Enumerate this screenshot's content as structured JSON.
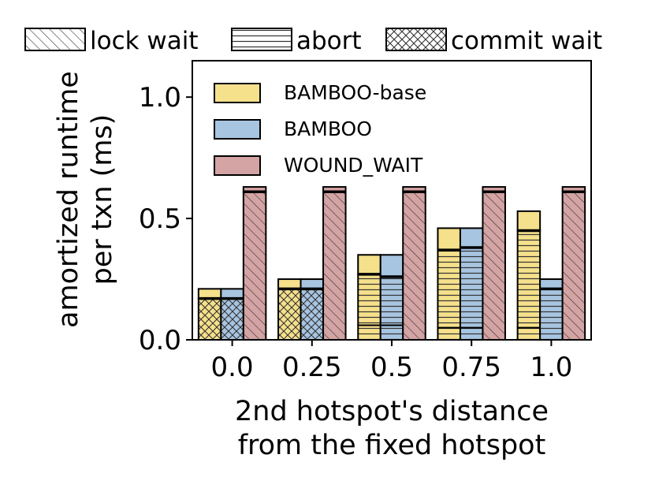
{
  "chart_data": {
    "type": "bar",
    "xlabel": "2nd hotspot's distance\nfrom the fixed hotspot",
    "ylabel": "amortized runtime\nper txn (ms)",
    "ylim": [
      0,
      1.15
    ],
    "yticks": [
      0.0,
      0.5,
      1.0
    ],
    "ytick_labels": [
      "0.0",
      "0.5",
      "1.0"
    ],
    "categories": [
      "0.0",
      "0.25",
      "0.5",
      "0.75",
      "1.0"
    ],
    "component_legend": [
      {
        "label": "lock wait",
        "pattern": "diag"
      },
      {
        "label": "abort",
        "pattern": "horiz"
      },
      {
        "label": "commit wait",
        "pattern": "cross"
      }
    ],
    "legend_position": "upper-left",
    "series": [
      {
        "name": "BAMBOO-base",
        "color": "#f5e08b",
        "lock_wait": [
          0.17,
          0.21,
          0.06,
          0.05,
          0.05
        ],
        "abort": [
          0.0,
          0.0,
          0.21,
          0.32,
          0.4
        ],
        "commit_wait": [
          0.0,
          0.0,
          0.0,
          0.0,
          0.0
        ],
        "other": [
          0.04,
          0.04,
          0.08,
          0.09,
          0.08
        ],
        "lock_pattern": [
          "cross",
          "cross",
          "horiz",
          "horiz",
          "horiz"
        ]
      },
      {
        "name": "BAMBOO",
        "color": "#a7c4e0",
        "lock_wait": [
          0.17,
          0.21,
          0.06,
          0.05,
          0.21
        ],
        "abort": [
          0.0,
          0.0,
          0.2,
          0.33,
          0.0
        ],
        "commit_wait": [
          0.0,
          0.0,
          0.0,
          0.0,
          0.0
        ],
        "other": [
          0.04,
          0.04,
          0.09,
          0.08,
          0.04
        ],
        "lock_pattern": [
          "cross",
          "cross",
          "horiz",
          "horiz",
          "horiz"
        ]
      },
      {
        "name": "WOUND_WAIT",
        "color": "#d4a3a3",
        "lock_wait": [
          0.61,
          0.61,
          0.61,
          0.61,
          0.61
        ],
        "abort": [
          0.0,
          0.0,
          0.0,
          0.0,
          0.0
        ],
        "commit_wait": [
          0.0,
          0.0,
          0.0,
          0.0,
          0.0
        ],
        "other": [
          0.02,
          0.02,
          0.02,
          0.02,
          0.02
        ],
        "lock_pattern": [
          "diag",
          "diag",
          "diag",
          "diag",
          "diag"
        ]
      }
    ]
  }
}
